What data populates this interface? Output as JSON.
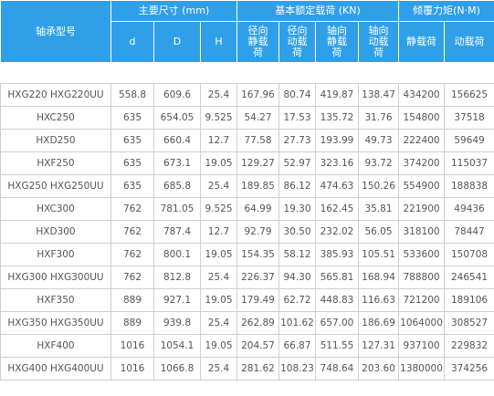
{
  "headers": {
    "model": "轴承型号",
    "main_dims": "主要尺寸 (mm)",
    "load_ratings": "基本额定载荷 (KN)",
    "tilt_moment": "倾覆力矩(N·M)",
    "d": "d",
    "D": "D",
    "H": "H",
    "radial_static": [
      "径向",
      "静载",
      "荷"
    ],
    "radial_dynamic": [
      "径向",
      "动载",
      "荷"
    ],
    "axial_static": [
      "轴向",
      "静载",
      "荷"
    ],
    "axial_dynamic": [
      "轴向",
      "动载",
      "荷"
    ],
    "static_load": "静载荷",
    "dynamic_load": "动载荷"
  },
  "rows": [
    [
      "HXG220 HXG220UU",
      "558.8",
      "609.6",
      "25.4",
      "167.96",
      "80.74",
      "419.87",
      "138.47",
      "434200",
      "156625"
    ],
    [
      "HXC250",
      "635",
      "654.05",
      "9.525",
      "54.27",
      "17.53",
      "135.72",
      "31.76",
      "154800",
      "37518"
    ],
    [
      "HXD250",
      "635",
      "660.4",
      "12.7",
      "77.58",
      "27.73",
      "193.99",
      "49.73",
      "222400",
      "59649"
    ],
    [
      "HXF250",
      "635",
      "673.1",
      "19.05",
      "129.27",
      "52.97",
      "323.16",
      "93.72",
      "374200",
      "115037"
    ],
    [
      "HXG250 HXG250UU",
      "635",
      "685.8",
      "25.4",
      "189.85",
      "86.12",
      "474.63",
      "150.26",
      "554900",
      "188838"
    ],
    [
      "HXC300",
      "762",
      "781.05",
      "9.525",
      "64.99",
      "19.30",
      "162.45",
      "35.81",
      "221900",
      "49436"
    ],
    [
      "HXD300",
      "762",
      "787.4",
      "12.7",
      "92.79",
      "30.50",
      "232.02",
      "56.05",
      "318100",
      "78447"
    ],
    [
      "HXF300",
      "762",
      "800.1",
      "19.05",
      "154.35",
      "58.12",
      "385.93",
      "105.51",
      "533600",
      "150708"
    ],
    [
      "HXG300 HXG300UU",
      "762",
      "812.8",
      "25.4",
      "226.37",
      "94.30",
      "565.81",
      "168.94",
      "788800",
      "246541"
    ],
    [
      "HXF350",
      "889",
      "927.1",
      "19.05",
      "179.49",
      "62.72",
      "448.83",
      "116.63",
      "721200",
      "189106"
    ],
    [
      "HXG350 HXG350UU",
      "889",
      "939.8",
      "25.4",
      "262.89",
      "101.62",
      "657.00",
      "186.69",
      "1064000",
      "308527"
    ],
    [
      "HXF400",
      "1016",
      "1054.1",
      "19.05",
      "204.57",
      "66.87",
      "511.55",
      "127.31",
      "937100",
      "229832"
    ],
    [
      "HXG400 HXG400UU",
      "1016",
      "1066.8",
      "25.4",
      "281.62",
      "108.23",
      "748.64",
      "203.60",
      "1380000",
      "374256"
    ]
  ]
}
